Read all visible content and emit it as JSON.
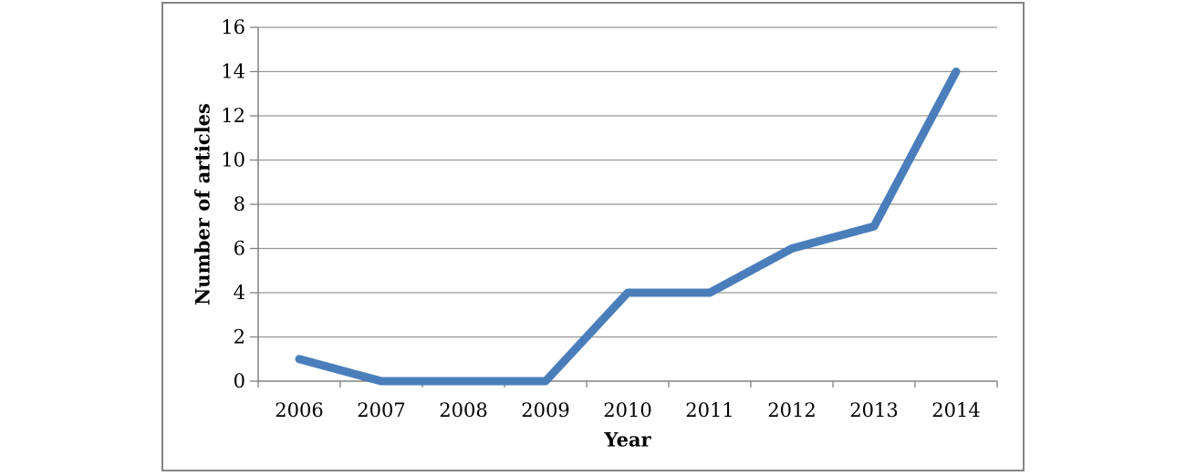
{
  "figure": {
    "background": "#ffffff",
    "border_color": "#848484"
  },
  "chart_data": {
    "type": "line",
    "title": "",
    "xlabel": "Year",
    "ylabel": "Number of articles",
    "categories": [
      "2006",
      "2007",
      "2008",
      "2009",
      "2010",
      "2011",
      "2012",
      "2013",
      "2014"
    ],
    "series": [
      {
        "name": "Number of articles",
        "values": [
          1,
          0,
          0,
          0,
          4,
          4,
          6,
          7,
          14
        ]
      }
    ],
    "ylim": [
      0,
      16
    ],
    "y_ticks": [
      0,
      2,
      4,
      6,
      8,
      10,
      12,
      14,
      16
    ],
    "grid": "horizontal",
    "legend_position": "none",
    "line_color": "#4A7EBB",
    "gridline_color": "#969696",
    "axis_color": "#808080",
    "text_color": "#000000"
  }
}
